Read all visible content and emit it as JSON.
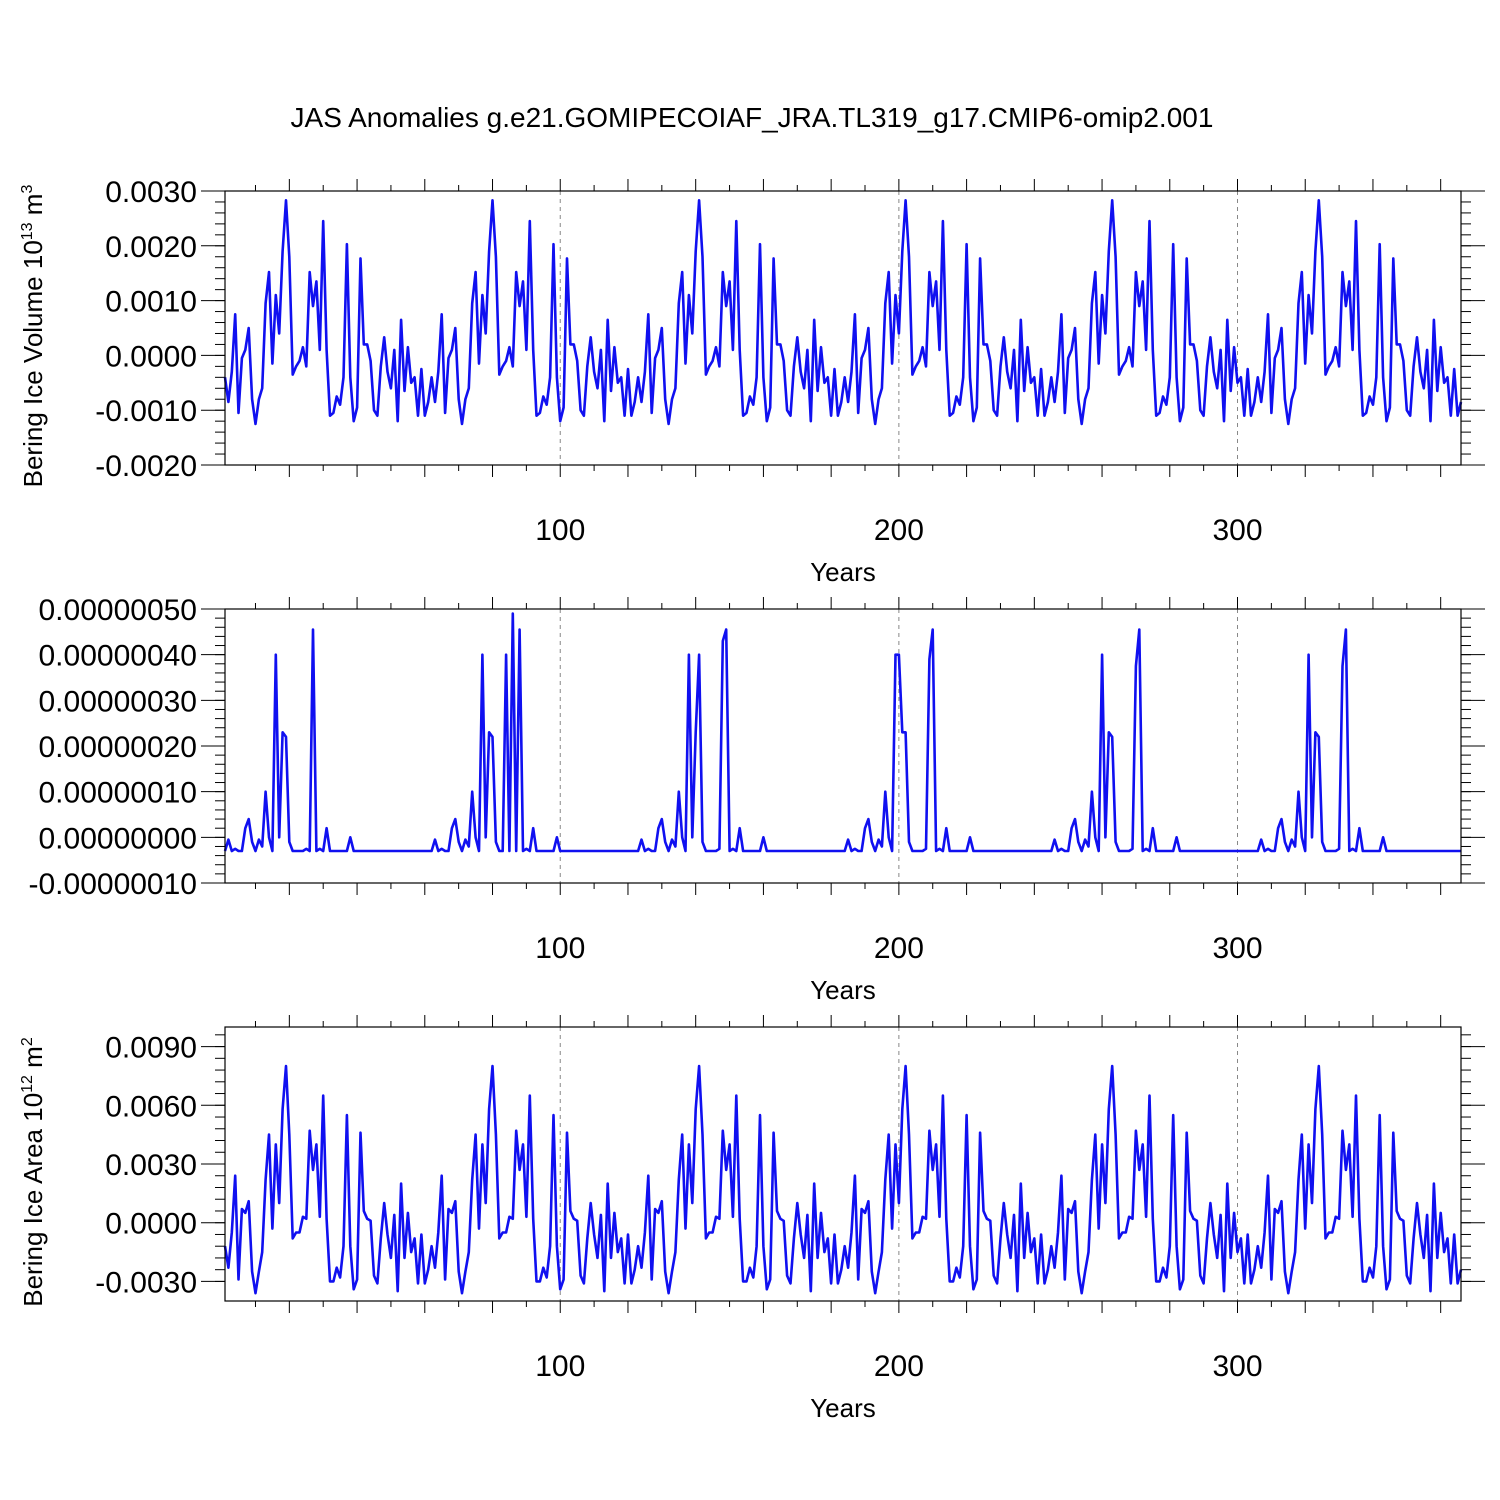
{
  "title": "JAS Anomalies g.e21.GOMIPECOIAF_JRA.TL319_g17.CMIP6-omip2.001",
  "line_color": "#1010f0",
  "chart_data": [
    {
      "type": "line",
      "name": "bering-ice-volume",
      "xlabel": "Years",
      "ylabel_main": "Bering Ice Volume 10",
      "ylabel_exp": "13",
      "ylabel_unit": " m",
      "ylabel_unit_exp": "3",
      "xlim": [
        1,
        366
      ],
      "ylim": [
        -0.002,
        0.003
      ],
      "xticks": [
        100,
        200,
        300
      ],
      "xtick_labels": [
        "100",
        "200",
        "300"
      ],
      "yticks": [
        -0.002,
        -0.001,
        0.0,
        0.001,
        0.002,
        0.003
      ],
      "ytick_labels": [
        "-0.0020",
        "-0.0010",
        "0.0000",
        "0.0010",
        "0.0020",
        "0.0030"
      ],
      "x_start": 1,
      "period": 61,
      "pattern": [
        -0.0004,
        -0.00085,
        -0.0003,
        0.00075,
        -0.00105,
        -5e-05,
        0.0001,
        0.0005,
        -0.0008,
        -0.00125,
        -0.0008,
        -0.0006,
        0.00095,
        0.00152,
        -0.00015,
        0.0011,
        0.0004,
        0.0019,
        0.00283,
        0.0018,
        -0.00035,
        -0.0002,
        -0.0001,
        0.00015,
        -0.0002,
        0.00152,
        0.0009,
        0.00135,
        0.0001,
        0.00245,
        0.0001,
        -0.0011,
        -0.00105,
        -0.00075,
        -0.0009,
        -0.0004,
        0.00203,
        -0.0004,
        -0.0012,
        -0.00095,
        0.00177,
        0.0002,
        0.0002,
        -0.0001,
        -0.001,
        -0.0011,
        -0.0002,
        0.00033,
        -0.0003,
        -0.0006,
        0.0001,
        -0.0012,
        0.00065,
        -0.00065,
        0.00015,
        -0.0005,
        -0.0004,
        -0.0011,
        -0.00025,
        -0.0011,
        -0.00085
      ]
    },
    {
      "type": "line",
      "name": "bering-small",
      "xlabel": "Years",
      "ylabel_main": "",
      "xlim": [
        1,
        366
      ],
      "ylim": [
        -1e-07,
        5e-07
      ],
      "xticks": [
        100,
        200,
        300
      ],
      "xtick_labels": [
        "100",
        "200",
        "300"
      ],
      "yticks": [
        -1e-07,
        0.0,
        1e-07,
        2e-07,
        3e-07,
        4e-07,
        5e-07
      ],
      "ytick_labels": [
        "-0.00000010",
        "0.00000000",
        "0.00000010",
        "0.00000020",
        "0.00000030",
        "0.00000040",
        "0.00000050"
      ],
      "x_start": 1,
      "period": 61,
      "pattern": [
        -3e-08,
        -5e-09,
        -3e-08,
        -2.5e-08,
        -3e-08,
        -3e-08,
        2e-08,
        4e-08,
        -1e-08,
        -3e-08,
        -5e-09,
        -2e-08,
        1e-07,
        0.0,
        -3e-08,
        4e-07,
        0.0,
        2.3e-07,
        2.2e-07,
        -1e-08,
        -3e-08,
        -3e-08,
        -3e-08,
        -3e-08,
        -2.5e-08,
        -3e-08,
        4.55e-07,
        -3e-08,
        -2.5e-08,
        -3e-08,
        2e-08,
        -3e-08,
        -3e-08,
        -3e-08,
        -3e-08,
        -3e-08,
        -3e-08,
        0.0,
        -3e-08,
        -3e-08,
        -3e-08,
        -3e-08,
        -3e-08,
        -3e-08,
        -3e-08,
        -3e-08,
        -3e-08,
        -3e-08,
        -3e-08,
        -3e-08,
        -3e-08,
        -3e-08,
        -3e-08,
        -3e-08,
        -3e-08,
        -3e-08,
        -3e-08,
        -3e-08,
        -3e-08,
        -3e-08,
        -3e-08
      ],
      "overrides": [
        [
          86,
          4.9e-07
        ],
        [
          84,
          4e-07
        ],
        [
          148,
          4.3e-07
        ],
        [
          141,
          4e-07
        ],
        [
          209,
          3.9e-07
        ],
        [
          202,
          2.3e-07
        ],
        [
          200,
          4e-07
        ],
        [
          270,
          3.75e-07
        ],
        [
          331,
          3.75e-07
        ]
      ]
    },
    {
      "type": "line",
      "name": "bering-ice-area",
      "xlabel": "Years",
      "ylabel_main": "Bering Ice Area 10",
      "ylabel_exp": "12",
      "ylabel_unit": " m",
      "ylabel_unit_exp": "2",
      "xlim": [
        1,
        366
      ],
      "ylim": [
        -0.004,
        0.01
      ],
      "xticks": [
        100,
        200,
        300
      ],
      "xtick_labels": [
        "100",
        "200",
        "300"
      ],
      "yticks": [
        -0.003,
        0.0,
        0.003,
        0.006,
        0.009
      ],
      "ytick_labels": [
        "-0.0030",
        "0.0000",
        "0.0030",
        "0.0060",
        "0.0090"
      ],
      "x_start": 1,
      "period": 61,
      "pattern": [
        -0.0012,
        -0.0023,
        -0.0005,
        0.0024,
        -0.0029,
        0.0007,
        0.0005,
        0.0011,
        -0.0025,
        -0.0036,
        -0.0025,
        -0.0015,
        0.0022,
        0.0045,
        -0.0003,
        0.004,
        0.001,
        0.0058,
        0.008,
        0.0045,
        -0.0008,
        -0.0005,
        -0.0005,
        0.0003,
        0.0002,
        0.0047,
        0.0027,
        0.004,
        0.0003,
        0.0065,
        0.0002,
        -0.003,
        -0.003,
        -0.0023,
        -0.0028,
        -0.0012,
        0.0055,
        -0.0012,
        -0.0034,
        -0.0029,
        0.0046,
        0.0006,
        0.0002,
        0.0001,
        -0.0027,
        -0.0031,
        -0.0008,
        0.001,
        -0.0006,
        -0.0018,
        0.0004,
        -0.0035,
        0.002,
        -0.0018,
        0.0005,
        -0.0015,
        -0.0008,
        -0.0031,
        -0.0006,
        -0.0031,
        -0.0024
      ]
    }
  ]
}
